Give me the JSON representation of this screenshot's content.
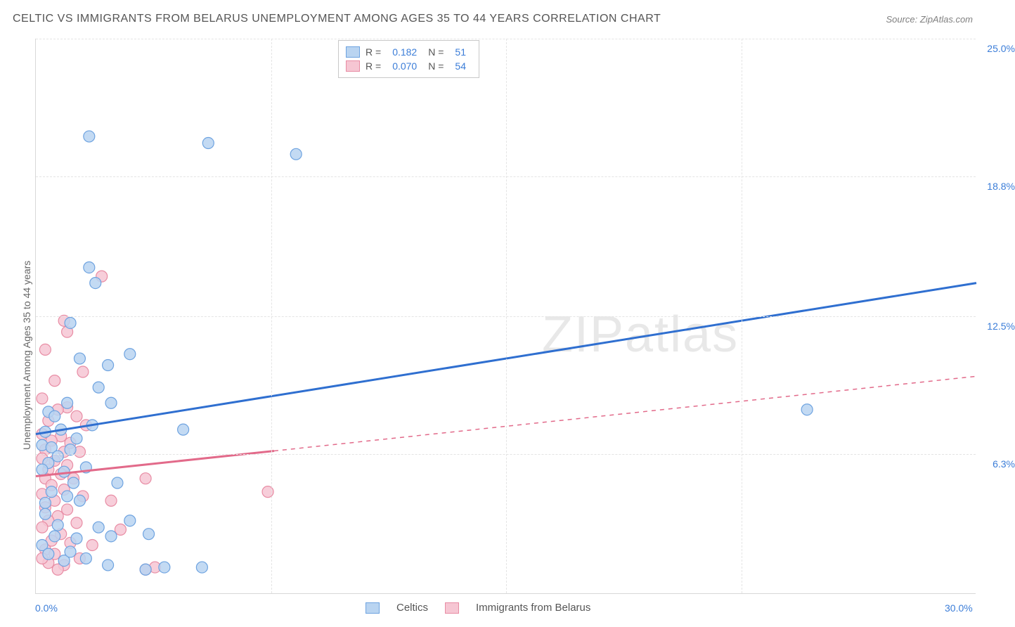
{
  "title": "CELTIC VS IMMIGRANTS FROM BELARUS UNEMPLOYMENT AMONG AGES 35 TO 44 YEARS CORRELATION CHART",
  "source": "Source: ZipAtlas.com",
  "y_axis_label": "Unemployment Among Ages 35 to 44 years",
  "watermark_a": "ZIP",
  "watermark_b": "atlas",
  "chart": {
    "type": "scatter",
    "xlim": [
      0,
      30
    ],
    "ylim": [
      0,
      25
    ],
    "x_ticks": [
      0.0,
      30.0
    ],
    "x_tick_labels": [
      "0.0%",
      "30.0%"
    ],
    "y_ticks": [
      6.3,
      12.5,
      18.8,
      25.0
    ],
    "y_tick_labels": [
      "6.3%",
      "12.5%",
      "18.8%",
      "25.0%"
    ],
    "v_gridlines_at_x": [
      7.5,
      15.0,
      22.5
    ],
    "background_color": "#ffffff",
    "grid_color": "#e4e4e4",
    "axis_color": "#d8d8d8",
    "tick_label_color": "#3b7dd8",
    "marker_radius": 8,
    "marker_stroke_width": 1.2,
    "trend_line_width": 3,
    "series": [
      {
        "name": "Celtics",
        "color_fill": "#b9d4f1",
        "color_stroke": "#6ea3e0",
        "line_color": "#2f6fd0",
        "R": "0.182",
        "N": "51",
        "trend": {
          "x1": 0,
          "y1": 7.2,
          "x2": 30,
          "y2": 14.0,
          "dashed_from_x": null
        },
        "points": [
          [
            1.7,
            20.6
          ],
          [
            5.5,
            20.3
          ],
          [
            8.3,
            19.8
          ],
          [
            1.7,
            14.7
          ],
          [
            1.9,
            14.0
          ],
          [
            1.1,
            12.2
          ],
          [
            3.0,
            10.8
          ],
          [
            1.4,
            10.6
          ],
          [
            2.3,
            10.3
          ],
          [
            2.0,
            9.3
          ],
          [
            2.4,
            8.6
          ],
          [
            0.4,
            8.2
          ],
          [
            1.0,
            8.6
          ],
          [
            0.6,
            8.0
          ],
          [
            4.7,
            7.4
          ],
          [
            1.8,
            7.6
          ],
          [
            0.3,
            7.3
          ],
          [
            0.8,
            7.4
          ],
          [
            1.3,
            7.0
          ],
          [
            0.2,
            6.7
          ],
          [
            0.5,
            6.6
          ],
          [
            1.1,
            6.5
          ],
          [
            0.7,
            6.2
          ],
          [
            0.4,
            5.9
          ],
          [
            0.2,
            5.6
          ],
          [
            1.6,
            5.7
          ],
          [
            0.9,
            5.5
          ],
          [
            24.6,
            8.3
          ],
          [
            1.2,
            5.0
          ],
          [
            2.6,
            5.0
          ],
          [
            0.5,
            4.6
          ],
          [
            1.0,
            4.4
          ],
          [
            0.3,
            4.1
          ],
          [
            1.4,
            4.2
          ],
          [
            3.0,
            3.3
          ],
          [
            2.0,
            3.0
          ],
          [
            3.6,
            2.7
          ],
          [
            0.6,
            2.6
          ],
          [
            1.3,
            2.5
          ],
          [
            2.4,
            2.6
          ],
          [
            0.2,
            2.2
          ],
          [
            2.3,
            1.3
          ],
          [
            4.1,
            1.2
          ],
          [
            3.5,
            1.1
          ],
          [
            5.3,
            1.2
          ],
          [
            0.9,
            1.5
          ],
          [
            1.6,
            1.6
          ],
          [
            0.4,
            1.8
          ],
          [
            1.1,
            1.9
          ],
          [
            0.3,
            3.6
          ],
          [
            0.7,
            3.1
          ]
        ]
      },
      {
        "name": "Immigrants from Belarus",
        "color_fill": "#f6c6d3",
        "color_stroke": "#e88ca4",
        "line_color": "#e26a8a",
        "R": "0.070",
        "N": "54",
        "trend": {
          "x1": 0,
          "y1": 5.3,
          "x2": 30,
          "y2": 9.8,
          "dashed_from_x": 7.6
        },
        "points": [
          [
            2.1,
            14.3
          ],
          [
            0.9,
            12.3
          ],
          [
            1.0,
            11.8
          ],
          [
            0.3,
            11.0
          ],
          [
            1.5,
            10.0
          ],
          [
            0.6,
            9.6
          ],
          [
            0.2,
            8.8
          ],
          [
            1.0,
            8.4
          ],
          [
            0.7,
            8.3
          ],
          [
            1.3,
            8.0
          ],
          [
            0.4,
            7.8
          ],
          [
            1.6,
            7.6
          ],
          [
            0.2,
            7.2
          ],
          [
            0.8,
            7.1
          ],
          [
            0.5,
            6.9
          ],
          [
            1.1,
            6.8
          ],
          [
            0.3,
            6.5
          ],
          [
            0.9,
            6.4
          ],
          [
            1.4,
            6.4
          ],
          [
            0.2,
            6.1
          ],
          [
            0.6,
            6.0
          ],
          [
            1.0,
            5.8
          ],
          [
            0.4,
            5.6
          ],
          [
            0.8,
            5.4
          ],
          [
            0.3,
            5.2
          ],
          [
            1.2,
            5.2
          ],
          [
            3.5,
            5.2
          ],
          [
            0.5,
            4.9
          ],
          [
            0.9,
            4.7
          ],
          [
            0.2,
            4.5
          ],
          [
            7.4,
            4.6
          ],
          [
            1.5,
            4.4
          ],
          [
            0.6,
            4.2
          ],
          [
            2.4,
            4.2
          ],
          [
            0.3,
            3.9
          ],
          [
            1.0,
            3.8
          ],
          [
            0.7,
            3.5
          ],
          [
            0.4,
            3.3
          ],
          [
            1.3,
            3.2
          ],
          [
            0.2,
            3.0
          ],
          [
            2.7,
            2.9
          ],
          [
            0.8,
            2.7
          ],
          [
            0.5,
            2.4
          ],
          [
            1.1,
            2.3
          ],
          [
            1.8,
            2.2
          ],
          [
            0.3,
            2.0
          ],
          [
            0.6,
            1.8
          ],
          [
            1.4,
            1.6
          ],
          [
            0.4,
            1.4
          ],
          [
            0.9,
            1.3
          ],
          [
            3.8,
            1.2
          ],
          [
            3.5,
            1.1
          ],
          [
            0.2,
            1.6
          ],
          [
            0.7,
            1.1
          ]
        ]
      }
    ]
  },
  "legend_top": {
    "r_label": "R =",
    "n_label": "N ="
  },
  "legend_bottom": [
    {
      "label": "Celtics"
    },
    {
      "label": "Immigrants from Belarus"
    }
  ]
}
